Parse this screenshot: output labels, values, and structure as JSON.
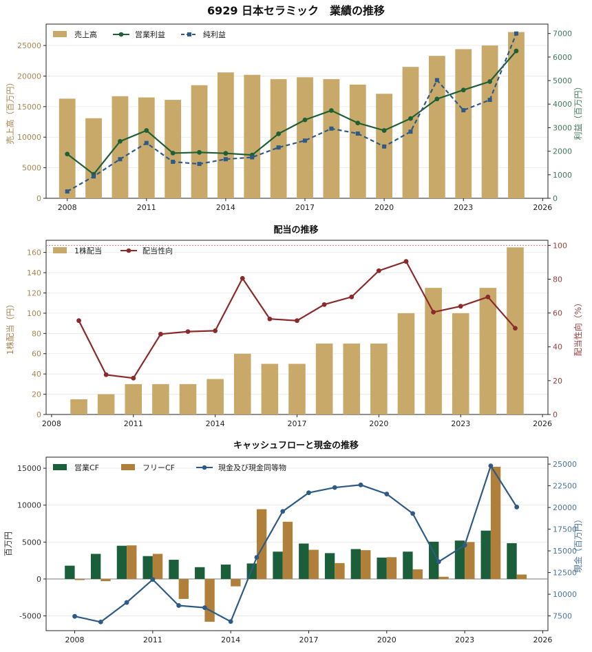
{
  "title": "6929 日本セラミック　業績の推移",
  "colors": {
    "revenue": "#c8a96a",
    "op_profit": "#1f5f36",
    "net_profit": "#2e5a86",
    "dividend_bar": "#c8a96a",
    "payout": "#8b2a2a",
    "payout_ref": "#e07070",
    "op_cf": "#1b5e3a",
    "free_cf": "#b07f3a",
    "cash": "#2e5a86",
    "axis": "#222222",
    "grid": "#e8e8e8"
  },
  "chart_data": [
    {
      "type": "bar",
      "title": "",
      "xlabel": "",
      "ylabel": "売上高（百万円）",
      "ylabel_right": "利益（百万円）",
      "xlim": [
        2007.2,
        2026.2
      ],
      "ylim": [
        0,
        28500
      ],
      "ylim_right": [
        0,
        7400
      ],
      "xticks": [
        2008,
        2011,
        2014,
        2017,
        2020,
        2023,
        2026
      ],
      "yticks": [
        0,
        5000,
        10000,
        15000,
        20000,
        25000
      ],
      "yticks_right": [
        0,
        1000,
        2000,
        3000,
        4000,
        5000,
        6000,
        7000
      ],
      "x": [
        2008,
        2009,
        2010,
        2011,
        2012,
        2013,
        2014,
        2015,
        2016,
        2017,
        2018,
        2019,
        2020,
        2021,
        2022,
        2023,
        2024,
        2025
      ],
      "series": [
        {
          "name": "売上高",
          "kind": "bar",
          "axis": "left",
          "color_key": "revenue",
          "values": [
            16300,
            13100,
            16700,
            16500,
            16100,
            18500,
            20600,
            20200,
            19500,
            19800,
            19500,
            18600,
            17100,
            21500,
            23300,
            24400,
            25000,
            27200
          ]
        },
        {
          "name": "営業利益",
          "kind": "line",
          "marker": "circle",
          "axis": "right",
          "color_key": "op_profit",
          "values": [
            1880,
            1020,
            2420,
            2880,
            1920,
            1950,
            1910,
            1840,
            2740,
            3330,
            3730,
            3200,
            2880,
            3390,
            4220,
            4600,
            4960,
            6260
          ]
        },
        {
          "name": "純利益",
          "kind": "line",
          "marker": "square",
          "dashed": true,
          "axis": "right",
          "color_key": "net_profit",
          "values": [
            290,
            930,
            1660,
            2350,
            1550,
            1460,
            1660,
            1740,
            2160,
            2450,
            2960,
            2750,
            2200,
            2830,
            5020,
            3740,
            4180,
            7000
          ]
        }
      ],
      "legend": "top-left",
      "grid": true
    },
    {
      "type": "bar",
      "title": "配当の推移",
      "xlabel": "",
      "ylabel": "1株配当（円）",
      "ylabel_right": "配当性向（%）",
      "xlim": [
        2007.8,
        2026.2
      ],
      "ylim": [
        0,
        172
      ],
      "ylim_right": [
        0,
        103
      ],
      "xticks": [
        2008,
        2011,
        2014,
        2017,
        2020,
        2023,
        2026
      ],
      "yticks": [
        0,
        20,
        40,
        60,
        80,
        100,
        120,
        140,
        160
      ],
      "yticks_right": [
        0,
        20,
        40,
        60,
        80,
        100
      ],
      "reference_line_right": 100,
      "x": [
        2009,
        2010,
        2011,
        2012,
        2013,
        2014,
        2015,
        2016,
        2017,
        2018,
        2019,
        2020,
        2021,
        2022,
        2023,
        2024,
        2025
      ],
      "series": [
        {
          "name": "1株配当",
          "kind": "bar",
          "axis": "left",
          "color_key": "dividend_bar",
          "values": [
            15,
            20,
            30,
            30,
            30,
            35,
            60,
            50,
            50,
            70,
            70,
            70,
            100,
            125,
            100,
            125,
            165
          ]
        },
        {
          "name": "配当性向",
          "kind": "line",
          "marker": "circle",
          "axis": "right",
          "color_key": "payout",
          "values": [
            55.5,
            23.5,
            21.5,
            47.5,
            49,
            49.5,
            80.5,
            56.5,
            55.5,
            65,
            69.5,
            85,
            90.5,
            60.5,
            64,
            69.5,
            51
          ]
        }
      ],
      "legend": "top-left",
      "grid": true
    },
    {
      "type": "bar",
      "title": "キャッシュフローと現金の推移",
      "xlabel": "",
      "ylabel": "百万円",
      "ylabel_right": "現金（百万円）",
      "xlim": [
        2006.9,
        2026.2
      ],
      "ylim": [
        -7000,
        16500
      ],
      "ylim_right": [
        5800,
        25800
      ],
      "xticks": [
        2008,
        2011,
        2014,
        2017,
        2020,
        2023,
        2026
      ],
      "yticks": [
        -5000,
        0,
        5000,
        10000,
        15000
      ],
      "yticks_right": [
        7500,
        10000,
        12500,
        15000,
        17500,
        20000,
        22500,
        25000
      ],
      "x": [
        2008,
        2009,
        2010,
        2011,
        2012,
        2013,
        2014,
        2015,
        2016,
        2017,
        2018,
        2019,
        2020,
        2021,
        2022,
        2023,
        2024,
        2025
      ],
      "series": [
        {
          "name": "営業CF",
          "kind": "bar",
          "axis": "left",
          "color_key": "op_cf",
          "values": [
            1800,
            3400,
            4500,
            3100,
            2600,
            1600,
            1950,
            2100,
            3700,
            4800,
            3500,
            4050,
            2900,
            3700,
            5050,
            5200,
            6550,
            4850
          ]
        },
        {
          "name": "フリーCF",
          "kind": "bar",
          "axis": "left",
          "color_key": "free_cf",
          "values": [
            -150,
            -300,
            4550,
            3400,
            -2700,
            -5800,
            -1000,
            9450,
            7750,
            3950,
            2150,
            3900,
            2950,
            1300,
            300,
            5000,
            15200,
            600
          ]
        },
        {
          "name": "現金及び現金同等物",
          "kind": "line",
          "marker": "circle",
          "axis": "right",
          "color_key": "cash",
          "values": [
            7450,
            6800,
            9050,
            11700,
            8700,
            8450,
            6850,
            14250,
            19550,
            21700,
            22300,
            22600,
            21550,
            19300,
            13750,
            15650,
            24800,
            20050
          ]
        }
      ],
      "legend": "top-left",
      "grid": true
    }
  ]
}
